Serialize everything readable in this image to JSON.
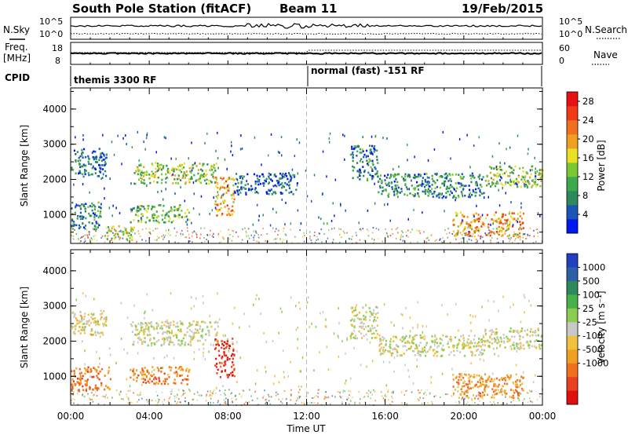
{
  "header": {
    "station": "South Pole Station (fitACF)",
    "beam": "Beam 11",
    "date": "19/Feb/2015"
  },
  "strip": {
    "nsky_label": "N.Sky",
    "nsearch_label": "N.Search",
    "freq_label_1": "Freq.",
    "freq_label_2": "[MHz]",
    "nave_label": "Nave",
    "cpid_label": "CPID",
    "nsky_ticks": [
      "10^5",
      "10^0"
    ],
    "nsearch_ticks": [
      "10^5",
      "10^0"
    ],
    "freq_ticks": [
      "18",
      "8"
    ],
    "nave_ticks": [
      "60",
      "0"
    ],
    "cpid_left": "themis 3300 RF",
    "cpid_right": "normal (fast) -151 RF"
  },
  "axes": {
    "xlabel": "Time UT",
    "x_ticks": [
      "00:00",
      "04:00",
      "08:00",
      "12:00",
      "16:00",
      "20:00",
      "00:00"
    ],
    "y_ticks": [
      "1000",
      "2000",
      "3000",
      "4000"
    ]
  },
  "colors": {
    "power_scale": [
      "#0018f0",
      "#1a55b8",
      "#2e8a5c",
      "#3ea84c",
      "#7cc832",
      "#e8e020",
      "#f0a020",
      "#f07020",
      "#f03a18",
      "#e81010"
    ],
    "velocity_scale": [
      "#2040c0",
      "#2e60a8",
      "#2e8a5c",
      "#48b048",
      "#8ccc50",
      "#c8c8c8",
      "#f0c040",
      "#f0a020",
      "#f07020",
      "#e84020",
      "#e01010"
    ]
  },
  "chart_data": [
    {
      "type": "heatmap",
      "title": "",
      "xlabel": "",
      "ylabel": "Slant Range [km]",
      "xlim": [
        0,
        24
      ],
      "ylim": [
        180,
        4600
      ],
      "colorbar": {
        "label": "Power [dB]",
        "ticks": [
          "4",
          "8",
          "12",
          "16",
          "20",
          "24",
          "28"
        ],
        "range": [
          0,
          30
        ]
      },
      "echo_regions": [
        {
          "t": [
            0.0,
            1.8
          ],
          "range": [
            2100,
            2900
          ],
          "value": 6
        },
        {
          "t": [
            0.0,
            1.5
          ],
          "range": [
            600,
            1400
          ],
          "value": 8
        },
        {
          "t": [
            1.7,
            3.2
          ],
          "range": [
            300,
            700
          ],
          "value": 14
        },
        {
          "t": [
            3.2,
            7.5
          ],
          "range": [
            1900,
            2500
          ],
          "value": 14
        },
        {
          "t": [
            3.0,
            6.0
          ],
          "range": [
            800,
            1300
          ],
          "value": 12
        },
        {
          "t": [
            7.3,
            8.3
          ],
          "range": [
            1000,
            2100
          ],
          "value": 20
        },
        {
          "t": [
            8.3,
            11.5
          ],
          "range": [
            1600,
            2200
          ],
          "value": 5
        },
        {
          "t": [
            14.2,
            15.6
          ],
          "range": [
            2000,
            3000
          ],
          "value": 7
        },
        {
          "t": [
            15.6,
            21.0
          ],
          "range": [
            1500,
            2200
          ],
          "value": 8
        },
        {
          "t": [
            21.0,
            24.0
          ],
          "range": [
            1800,
            2400
          ],
          "value": 13
        },
        {
          "t": [
            19.4,
            23.0
          ],
          "range": [
            400,
            1100
          ],
          "value": 20
        }
      ]
    },
    {
      "type": "heatmap",
      "title": "",
      "xlabel": "Time UT",
      "ylabel": "Slant Range [km]",
      "xlim": [
        0,
        24
      ],
      "ylim": [
        180,
        4600
      ],
      "colorbar": {
        "label": "Velocity [m s⁻¹]",
        "ticks": [
          "1000",
          "500",
          "100",
          "25",
          "-25",
          "-100",
          "-500",
          "-1000"
        ],
        "range": [
          -1000,
          1000
        ]
      },
      "echo_regions": [
        {
          "t": [
            0.0,
            1.8
          ],
          "range": [
            2200,
            2900
          ],
          "value": -100
        },
        {
          "t": [
            0.0,
            2.0
          ],
          "range": [
            600,
            1300
          ],
          "value": -500
        },
        {
          "t": [
            3.0,
            7.5
          ],
          "range": [
            1900,
            2600
          ],
          "value": 0
        },
        {
          "t": [
            3.0,
            6.0
          ],
          "range": [
            800,
            1300
          ],
          "value": -500
        },
        {
          "t": [
            7.3,
            8.3
          ],
          "range": [
            1000,
            2100
          ],
          "value": -800
        },
        {
          "t": [
            14.2,
            15.6
          ],
          "range": [
            2100,
            3000
          ],
          "value": 0
        },
        {
          "t": [
            15.6,
            21.0
          ],
          "range": [
            1600,
            2200
          ],
          "value": 0
        },
        {
          "t": [
            21.0,
            24.0
          ],
          "range": [
            1800,
            2400
          ],
          "value": 0
        },
        {
          "t": [
            19.4,
            23.0
          ],
          "range": [
            400,
            1100
          ],
          "value": -400
        }
      ]
    }
  ]
}
